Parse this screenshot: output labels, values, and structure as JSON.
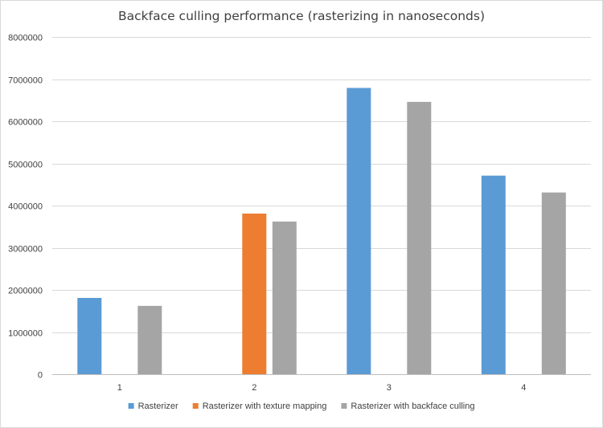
{
  "chart_data": {
    "type": "bar",
    "title": "Backface culling performance (rasterizing in nanoseconds)",
    "xlabel": "",
    "ylabel": "",
    "categories": [
      "1",
      "2",
      "3",
      "4"
    ],
    "series": [
      {
        "name": "Rasterizer",
        "color": "#5B9BD5",
        "values": [
          1810000,
          null,
          6790000,
          4710000
        ]
      },
      {
        "name": "Rasterizer with texture mapping",
        "color": "#ED7D31",
        "values": [
          null,
          3810000,
          null,
          null
        ]
      },
      {
        "name": "Rasterizer with backface culling",
        "color": "#A5A5A5",
        "values": [
          1620000,
          3620000,
          6460000,
          4310000
        ]
      }
    ],
    "ylim": [
      0,
      8000000
    ],
    "yticks": [
      "0",
      "1000000",
      "2000000",
      "3000000",
      "4000000",
      "5000000",
      "6000000",
      "7000000",
      "8000000"
    ],
    "grid": true,
    "legend_position": "bottom",
    "gridline_color": "#d9d9d9",
    "axis_color": "#bfbfbf"
  }
}
